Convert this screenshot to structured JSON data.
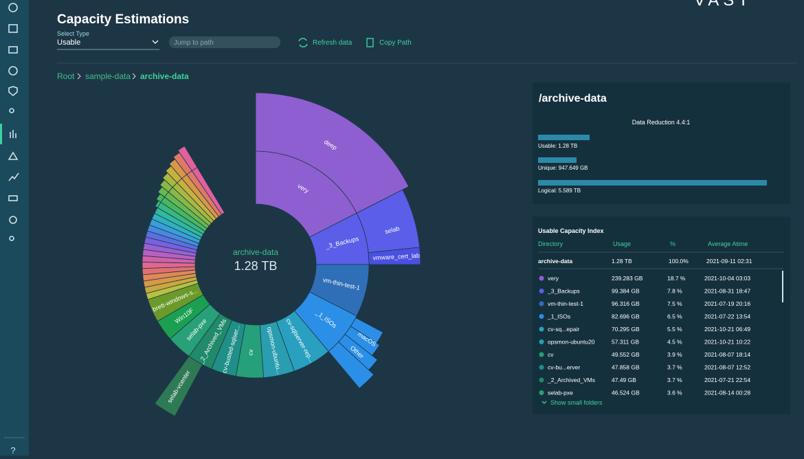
{
  "header": {
    "title": "Capacity Estimations",
    "logo": "VAST"
  },
  "toolbar": {
    "select_label": "Select Type",
    "select_value": "Usable",
    "search_placeholder": "Jump to path",
    "refresh": "Refresh data",
    "copy": "Copy Path"
  },
  "breadcrumb": [
    "Root",
    "sample-data",
    "archive-data"
  ],
  "sunburst": {
    "center_name": "archive-data",
    "center_value": "1.28 TB",
    "segments": [
      "deep",
      "very",
      "selab",
      "_3_Backups",
      "vmware_cert_lab",
      "vm-thin-test-1",
      "_1_ISOs",
      "macOS",
      "Other",
      "cv-sqlserver-rep...",
      "opsmon-ubuntu...",
      "cv",
      "cv-busted-sqlser...",
      "_2_Archived_VMs",
      "selab-pxe",
      "Win10F",
      "brett-windows-s...",
      "selab-vcenter"
    ]
  },
  "summary": {
    "title": "/archive-data",
    "reduction": "Data Reduction 4.4:1",
    "bars": [
      "Usable: 1.28 TB",
      "Unique: 947.649 GB",
      "Logical: 5.589 TB"
    ]
  },
  "index": {
    "title": "Usable Capacity Index",
    "columns": [
      "Directory",
      "Usage",
      "%",
      "Average Atime"
    ],
    "total": [
      "archive-data",
      "1.28 TB",
      "100.0%",
      "2021-09-11 02:31"
    ],
    "rows": [
      {
        "color": "#8e5fd0",
        "cells": [
          "very",
          "239.283 GB",
          "18.7 %",
          "2021-10-04 03:03"
        ]
      },
      {
        "color": "#5a5ee8",
        "cells": [
          "_3_Backups",
          "99.384 GB",
          "7.8 %",
          "2021-08-31 18:47"
        ]
      },
      {
        "color": "#2f6fb8",
        "cells": [
          "vm-thin-test-1",
          "96.316 GB",
          "7.5 %",
          "2021-07-19 20:16"
        ]
      },
      {
        "color": "#2b8fe8",
        "cells": [
          "_1_ISOs",
          "82.696 GB",
          "6.5 %",
          "2021-07-22 13:54"
        ]
      },
      {
        "color": "#2aa0c0",
        "cells": [
          "cv-sq...epair",
          "70.295 GB",
          "5.5 %",
          "2021-10-21 06:49"
        ]
      },
      {
        "color": "#2a9eb0",
        "cells": [
          "opsmon-ubuntu20",
          "57.311 GB",
          "4.5 %",
          "2021-10-21 10:22"
        ]
      },
      {
        "color": "#25a07a",
        "cells": [
          "cv",
          "49.552 GB",
          "3.9 %",
          "2021-08-07 18:14"
        ]
      },
      {
        "color": "#1f8f88",
        "cells": [
          "cv-bu...erver",
          "47.858 GB",
          "3.7 %",
          "2021-08-07 12:52"
        ]
      },
      {
        "color": "#208a6a",
        "cells": [
          "_2_Archived_VMs",
          "47.49 GB",
          "3.7 %",
          "2021-07-21 22:54"
        ]
      },
      {
        "color": "#28a078",
        "cells": [
          "selab-pxe",
          "46.524 GB",
          "3.6 %",
          "2021-08-14 00:28"
        ]
      }
    ],
    "more": "Show small folders"
  },
  "sidebar": {
    "help": "?"
  }
}
